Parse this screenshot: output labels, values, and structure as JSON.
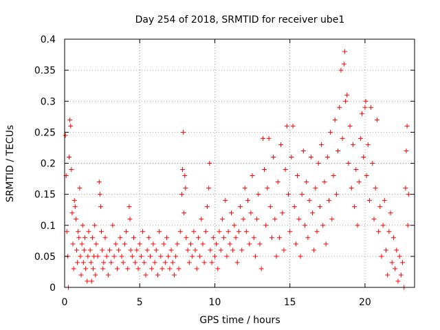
{
  "chart_data": {
    "type": "scatter",
    "title": "Day 254 of 2018, SRMTID for receiver ube1",
    "xlabel": "GPS time / hours",
    "ylabel": "SRMTID / TECUs",
    "xlim": [
      0,
      23.3
    ],
    "ylim": [
      0,
      0.4
    ],
    "xticks": [
      0,
      5,
      10,
      15,
      20
    ],
    "xtick_labels": [
      "0",
      "5",
      "10",
      "15",
      "20"
    ],
    "yticks": [
      0,
      0.05,
      0.1,
      0.15,
      0.2,
      0.25,
      0.3,
      0.35,
      0.4
    ],
    "ytick_labels": [
      "0",
      "0.05",
      "0.1",
      "0.15",
      "0.2",
      "0.25",
      "0.3",
      "0.35",
      "0.4"
    ],
    "grid": true,
    "marker": "+",
    "color": "#ff0000",
    "series": [
      {
        "name": "SRMTID",
        "points": [
          [
            0.05,
            0.245
          ],
          [
            0.1,
            0.18
          ],
          [
            0.15,
            0.09
          ],
          [
            0.2,
            0.05
          ],
          [
            0.25,
            0.0
          ],
          [
            0.3,
            0.21
          ],
          [
            0.35,
            0.27
          ],
          [
            0.4,
            0.26
          ],
          [
            0.45,
            0.19
          ],
          [
            0.5,
            0.12
          ],
          [
            0.55,
            0.07
          ],
          [
            0.6,
            0.03
          ],
          [
            0.65,
            0.14
          ],
          [
            0.7,
            0.13
          ],
          [
            0.75,
            0.11
          ],
          [
            0.8,
            0.06
          ],
          [
            0.85,
            0.04
          ],
          [
            0.9,
            0.09
          ],
          [
            0.95,
            0.08
          ],
          [
            1.0,
            0.16
          ],
          [
            1.05,
            0.05
          ],
          [
            1.1,
            0.02
          ],
          [
            1.15,
            0.07
          ],
          [
            1.2,
            0.1
          ],
          [
            1.25,
            0.04
          ],
          [
            1.3,
            0.06
          ],
          [
            1.35,
            0.08
          ],
          [
            1.4,
            0.03
          ],
          [
            1.5,
            0.01
          ],
          [
            1.55,
            0.05
          ],
          [
            1.6,
            0.09
          ],
          [
            1.7,
            0.06
          ],
          [
            1.75,
            0.04
          ],
          [
            1.8,
            0.01
          ],
          [
            1.85,
            0.08
          ],
          [
            1.9,
            0.03
          ],
          [
            1.95,
            0.05
          ],
          [
            2.0,
            0.1
          ],
          [
            2.05,
            0.02
          ],
          [
            2.1,
            0.07
          ],
          [
            2.2,
            0.05
          ],
          [
            2.3,
            0.17
          ],
          [
            2.35,
            0.15
          ],
          [
            2.4,
            0.13
          ],
          [
            2.45,
            0.09
          ],
          [
            2.5,
            0.06
          ],
          [
            2.55,
            0.03
          ],
          [
            2.6,
            0.04
          ],
          [
            2.7,
            0.08
          ],
          [
            2.8,
            0.05
          ],
          [
            2.9,
            0.02
          ],
          [
            3.0,
            0.06
          ],
          [
            3.1,
            0.04
          ],
          [
            3.2,
            0.1
          ],
          [
            3.3,
            0.05
          ],
          [
            3.4,
            0.07
          ],
          [
            3.5,
            0.03
          ],
          [
            3.6,
            0.06
          ],
          [
            3.7,
            0.08
          ],
          [
            3.8,
            0.05
          ],
          [
            3.9,
            0.04
          ],
          [
            4.0,
            0.07
          ],
          [
            4.1,
            0.09
          ],
          [
            4.2,
            0.03
          ],
          [
            4.3,
            0.13
          ],
          [
            4.35,
            0.11
          ],
          [
            4.4,
            0.06
          ],
          [
            4.5,
            0.05
          ],
          [
            4.6,
            0.08
          ],
          [
            4.7,
            0.04
          ],
          [
            4.8,
            0.06
          ],
          [
            4.9,
            0.03
          ],
          [
            5.0,
            0.07
          ],
          [
            5.1,
            0.05
          ],
          [
            5.2,
            0.09
          ],
          [
            5.3,
            0.04
          ],
          [
            5.4,
            0.02
          ],
          [
            5.5,
            0.06
          ],
          [
            5.6,
            0.08
          ],
          [
            5.7,
            0.05
          ],
          [
            5.8,
            0.03
          ],
          [
            5.9,
            0.07
          ],
          [
            6.0,
            0.04
          ],
          [
            6.1,
            0.06
          ],
          [
            6.2,
            0.02
          ],
          [
            6.3,
            0.09
          ],
          [
            6.4,
            0.05
          ],
          [
            6.5,
            0.03
          ],
          [
            6.6,
            0.07
          ],
          [
            6.7,
            0.04
          ],
          [
            6.8,
            0.08
          ],
          [
            6.9,
            0.05
          ],
          [
            7.0,
            0.03
          ],
          [
            7.1,
            0.06
          ],
          [
            7.2,
            0.04
          ],
          [
            7.3,
            0.02
          ],
          [
            7.4,
            0.05
          ],
          [
            7.5,
            0.07
          ],
          [
            7.6,
            0.03
          ],
          [
            7.7,
            0.09
          ],
          [
            7.8,
            0.15
          ],
          [
            7.85,
            0.19
          ],
          [
            7.9,
            0.25
          ],
          [
            7.95,
            0.12
          ],
          [
            8.0,
            0.18
          ],
          [
            8.05,
            0.16
          ],
          [
            8.1,
            0.08
          ],
          [
            8.2,
            0.06
          ],
          [
            8.3,
            0.04
          ],
          [
            8.4,
            0.07
          ],
          [
            8.5,
            0.05
          ],
          [
            8.6,
            0.09
          ],
          [
            8.7,
            0.06
          ],
          [
            8.8,
            0.03
          ],
          [
            8.9,
            0.08
          ],
          [
            9.0,
            0.05
          ],
          [
            9.1,
            0.11
          ],
          [
            9.2,
            0.07
          ],
          [
            9.3,
            0.04
          ],
          [
            9.4,
            0.09
          ],
          [
            9.5,
            0.13
          ],
          [
            9.6,
            0.16
          ],
          [
            9.65,
            0.2
          ],
          [
            9.7,
            0.06
          ],
          [
            9.8,
            0.04
          ],
          [
            9.9,
            0.08
          ],
          [
            10.0,
            0.05
          ],
          [
            10.1,
            0.07
          ],
          [
            10.2,
            0.03
          ],
          [
            10.3,
            0.09
          ],
          [
            10.4,
            0.06
          ],
          [
            10.5,
            0.11
          ],
          [
            10.6,
            0.08
          ],
          [
            10.7,
            0.14
          ],
          [
            10.8,
            0.05
          ],
          [
            10.9,
            0.09
          ],
          [
            11.0,
            0.07
          ],
          [
            11.1,
            0.12
          ],
          [
            11.2,
            0.06
          ],
          [
            11.3,
            0.1
          ],
          [
            11.4,
            0.08
          ],
          [
            11.5,
            0.04
          ],
          [
            11.6,
            0.09
          ],
          [
            11.7,
            0.13
          ],
          [
            11.8,
            0.06
          ],
          [
            11.9,
            0.11
          ],
          [
            12.0,
            0.16
          ],
          [
            12.1,
            0.09
          ],
          [
            12.2,
            0.14
          ],
          [
            12.3,
            0.07
          ],
          [
            12.4,
            0.12
          ],
          [
            12.5,
            0.18
          ],
          [
            12.6,
            0.08
          ],
          [
            12.7,
            0.05
          ],
          [
            12.8,
            0.11
          ],
          [
            12.9,
            0.15
          ],
          [
            13.0,
            0.07
          ],
          [
            13.1,
            0.03
          ],
          [
            13.2,
            0.24
          ],
          [
            13.3,
            0.19
          ],
          [
            13.4,
            0.1
          ],
          [
            13.5,
            0.16
          ],
          [
            13.6,
            0.24
          ],
          [
            13.7,
            0.13
          ],
          [
            13.8,
            0.08
          ],
          [
            13.9,
            0.21
          ],
          [
            14.0,
            0.11
          ],
          [
            14.1,
            0.05
          ],
          [
            14.2,
            0.17
          ],
          [
            14.3,
            0.08
          ],
          [
            14.4,
            0.23
          ],
          [
            14.5,
            0.12
          ],
          [
            14.6,
            0.06
          ],
          [
            14.7,
            0.19
          ],
          [
            14.8,
            0.26
          ],
          [
            14.9,
            0.15
          ],
          [
            15.0,
            0.09
          ],
          [
            15.1,
            0.21
          ],
          [
            15.2,
            0.26
          ],
          [
            15.3,
            0.13
          ],
          [
            15.4,
            0.07
          ],
          [
            15.5,
            0.18
          ],
          [
            15.6,
            0.11
          ],
          [
            15.7,
            0.05
          ],
          [
            15.8,
            0.15
          ],
          [
            15.9,
            0.22
          ],
          [
            16.0,
            0.1
          ],
          [
            16.1,
            0.17
          ],
          [
            16.2,
            0.08
          ],
          [
            16.3,
            0.14
          ],
          [
            16.4,
            0.21
          ],
          [
            16.5,
            0.12
          ],
          [
            16.6,
            0.06
          ],
          [
            16.7,
            0.16
          ],
          [
            16.8,
            0.09
          ],
          [
            16.9,
            0.2
          ],
          [
            17.0,
            0.13
          ],
          [
            17.1,
            0.23
          ],
          [
            17.2,
            0.1
          ],
          [
            17.3,
            0.17
          ],
          [
            17.4,
            0.07
          ],
          [
            17.5,
            0.21
          ],
          [
            17.6,
            0.14
          ],
          [
            17.7,
            0.25
          ],
          [
            17.8,
            0.11
          ],
          [
            17.9,
            0.18
          ],
          [
            18.0,
            0.27
          ],
          [
            18.1,
            0.15
          ],
          [
            18.2,
            0.22
          ],
          [
            18.3,
            0.29
          ],
          [
            18.4,
            0.35
          ],
          [
            18.5,
            0.24
          ],
          [
            18.6,
            0.36
          ],
          [
            18.65,
            0.38
          ],
          [
            18.7,
            0.3
          ],
          [
            18.8,
            0.31
          ],
          [
            18.9,
            0.2
          ],
          [
            19.0,
            0.26
          ],
          [
            19.1,
            0.16
          ],
          [
            19.2,
            0.23
          ],
          [
            19.3,
            0.13
          ],
          [
            19.4,
            0.19
          ],
          [
            19.5,
            0.1
          ],
          [
            19.6,
            0.17
          ],
          [
            19.7,
            0.24
          ],
          [
            19.8,
            0.28
          ],
          [
            19.9,
            0.21
          ],
          [
            20.0,
            0.29
          ],
          [
            20.05,
            0.3
          ],
          [
            20.1,
            0.18
          ],
          [
            20.2,
            0.23
          ],
          [
            20.3,
            0.14
          ],
          [
            20.4,
            0.29
          ],
          [
            20.5,
            0.2
          ],
          [
            20.6,
            0.11
          ],
          [
            20.7,
            0.16
          ],
          [
            20.8,
            0.27
          ],
          [
            20.9,
            0.09
          ],
          [
            21.0,
            0.13
          ],
          [
            21.1,
            0.05
          ],
          [
            21.2,
            0.1
          ],
          [
            21.3,
            0.14
          ],
          [
            21.4,
            0.06
          ],
          [
            21.5,
            0.02
          ],
          [
            21.6,
            0.09
          ],
          [
            21.7,
            0.12
          ],
          [
            21.8,
            0.04
          ],
          [
            21.9,
            0.08
          ],
          [
            22.0,
            0.03
          ],
          [
            22.1,
            0.06
          ],
          [
            22.2,
            0.01
          ],
          [
            22.3,
            0.05
          ],
          [
            22.4,
            0.02
          ],
          [
            22.5,
            0.04
          ],
          [
            22.6,
            0.0
          ],
          [
            22.7,
            0.16
          ],
          [
            22.75,
            0.22
          ],
          [
            22.8,
            0.26
          ],
          [
            22.85,
            0.1
          ],
          [
            22.9,
            0.15
          ]
        ]
      }
    ]
  }
}
